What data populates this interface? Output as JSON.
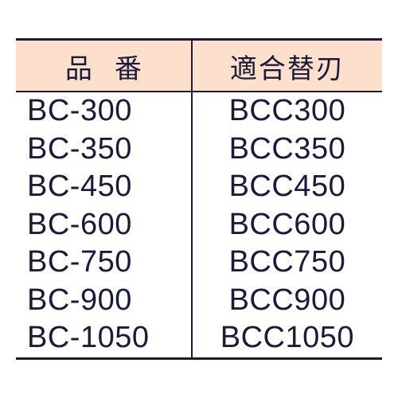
{
  "table": {
    "type": "table",
    "header_bg": "#fde0cc",
    "border_color": "#1a1a3a",
    "text_color": "#1a1a3a",
    "columns": [
      {
        "label": "品番",
        "align": "left"
      },
      {
        "label": "適合替刃",
        "align": "center"
      }
    ],
    "rows": [
      [
        "BC-300",
        "BCC300"
      ],
      [
        "BC-350",
        "BCC350"
      ],
      [
        "BC-450",
        "BCC450"
      ],
      [
        "BC-600",
        "BCC600"
      ],
      [
        "BC-750",
        "BCC750"
      ],
      [
        "BC-900",
        "BCC900"
      ],
      [
        "BC-1050",
        "BCC1050"
      ]
    ]
  }
}
